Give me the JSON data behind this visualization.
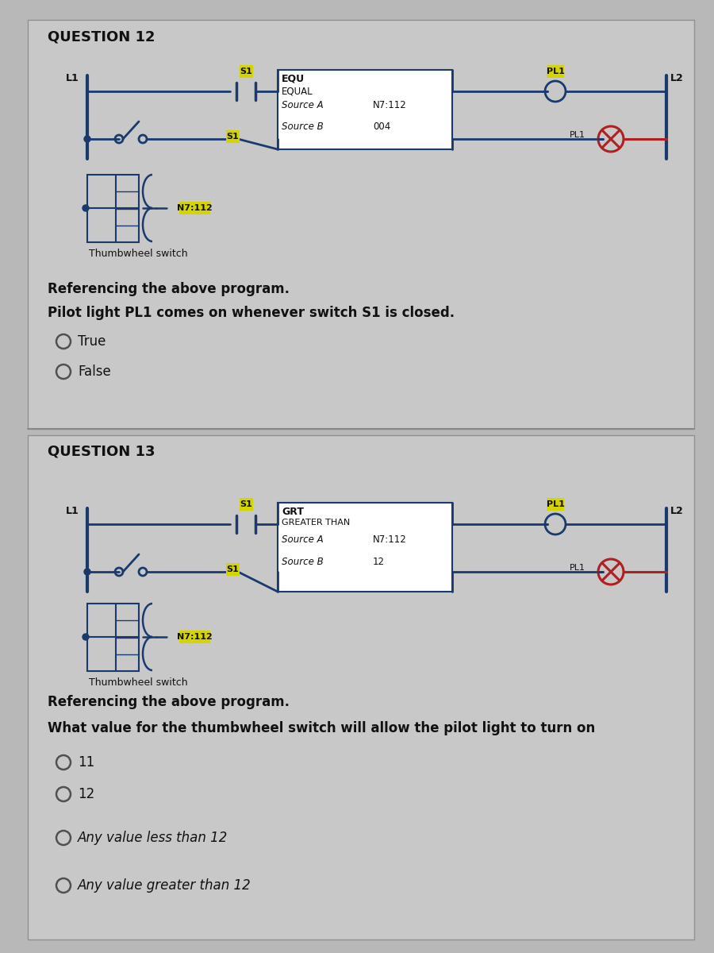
{
  "bg_color": "#b8b8b8",
  "panel_bg": "#c8c8c8",
  "title_q12": "QUESTION 12",
  "title_q13": "QUESTION 13",
  "q12_equ_title": "EQU",
  "q12_equ_sub": "EQUAL",
  "q12_src_a": "Source A",
  "q12_src_b": "Source B",
  "q12_src_a_val": "N7:112",
  "q12_src_b_val": "004",
  "q13_grt_title": "GRT",
  "q13_grt_sub": "GREATER THAN",
  "q13_src_a": "Source A",
  "q13_src_b": "Source B",
  "q13_src_a_val": "N7:112",
  "q13_src_b_val": "12",
  "tw_label": "N7:112",
  "q12_thumb_caption": "Thumbwheel switch",
  "q13_thumb_caption": "Thumbwheel switch",
  "q12_ref_text": "Referencing the above program.",
  "q12_question": "Pilot light PL1 comes on whenever switch S1 is closed.",
  "q12_opt1": "True",
  "q12_opt2": "False",
  "q13_ref_text": "Referencing the above program.",
  "q13_question": "What value for the thumbwheel switch will allow the pilot light to turn on",
  "q13_opt1": "11",
  "q13_opt2": "12",
  "q13_opt3": "Any value less than 12",
  "q13_opt4": "Any value greater than 12",
  "yellow": "#d4d400",
  "white": "#ffffff",
  "blue": "#1a3a6e",
  "red": "#b02020",
  "black": "#111111",
  "gray_dark": "#505050",
  "gray_med": "#909090"
}
